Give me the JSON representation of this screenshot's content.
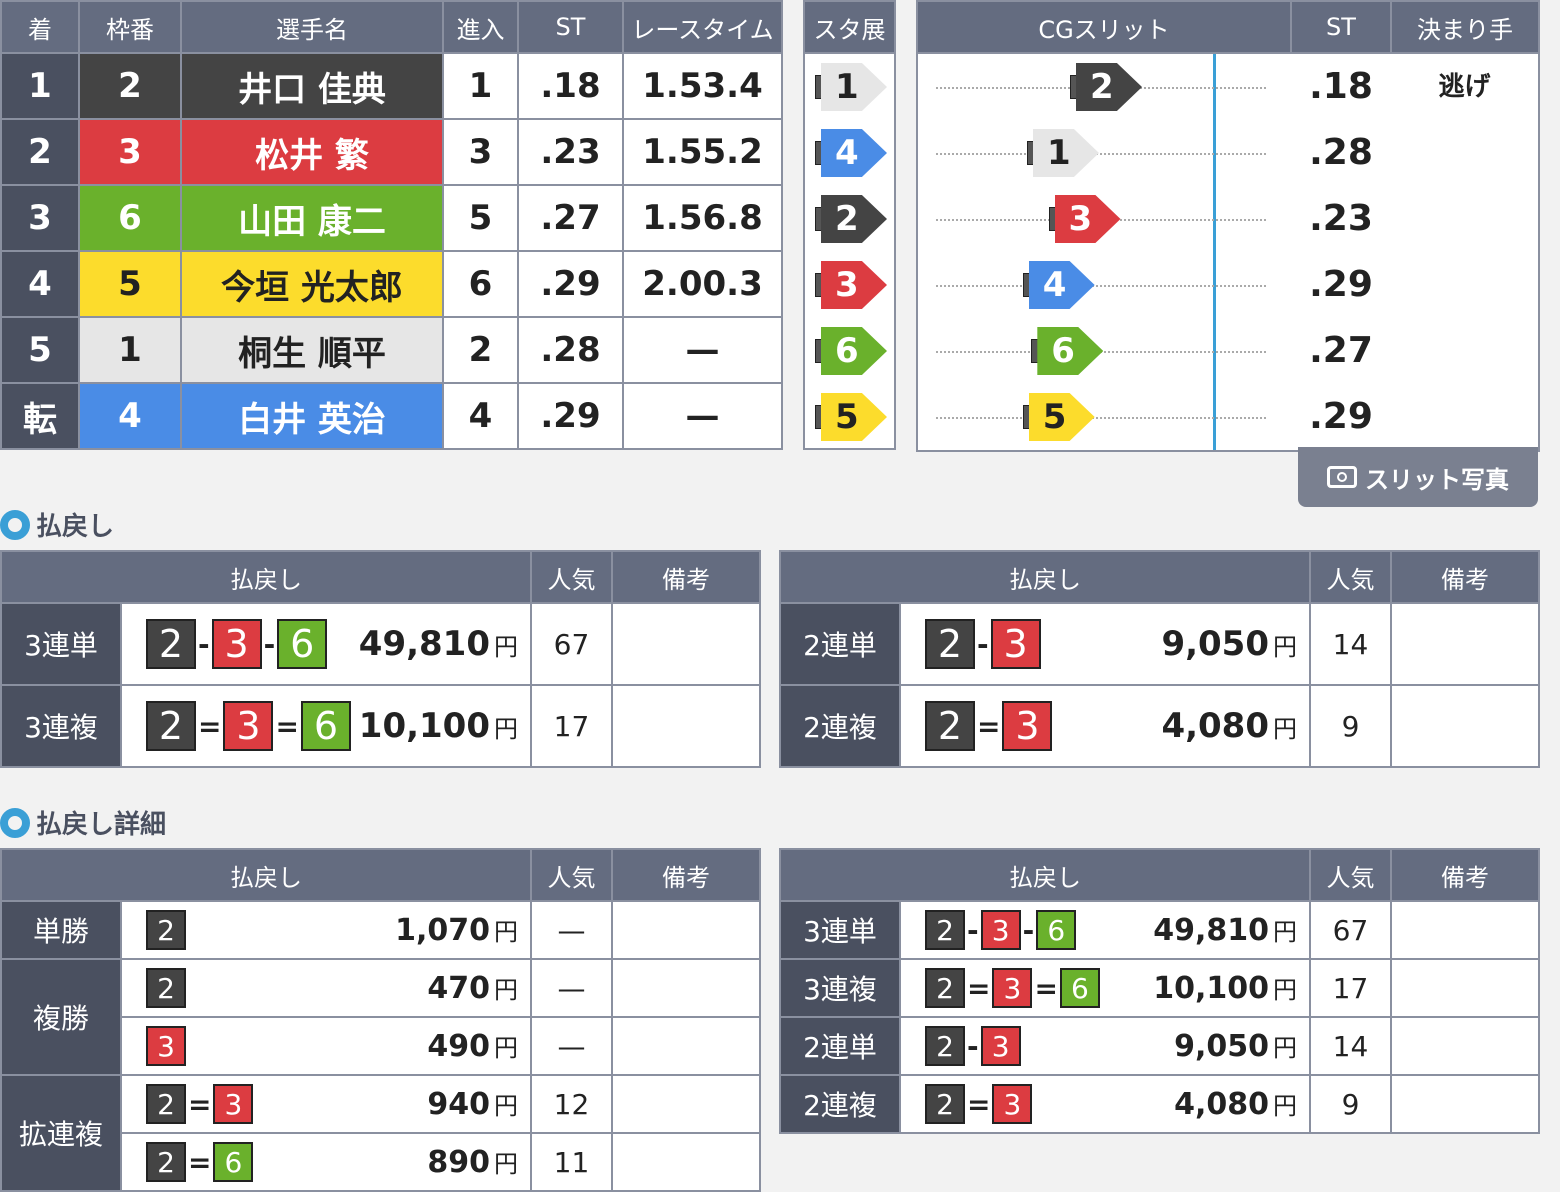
{
  "colors": {
    "header": "#646c80",
    "boat1": "#e6e6e6",
    "boat2": "#444444",
    "boat3": "#dc3c41",
    "boat4": "#4a8ce6",
    "boat5": "#fcdc2c",
    "boat6": "#6ab12c"
  },
  "result": {
    "headers": [
      "着",
      "枠番",
      "選手名",
      "進入",
      "ST",
      "レースタイム"
    ],
    "rows": [
      {
        "rank": "1",
        "waku": "2",
        "name": "井口 佳典",
        "course": "1",
        "st": ".18",
        "time": "1.53.4"
      },
      {
        "rank": "2",
        "waku": "3",
        "name": "松井 繁",
        "course": "3",
        "st": ".23",
        "time": "1.55.2"
      },
      {
        "rank": "3",
        "waku": "6",
        "name": "山田 康二",
        "course": "5",
        "st": ".27",
        "time": "1.56.8"
      },
      {
        "rank": "4",
        "waku": "5",
        "name": "今垣 光太郎",
        "course": "6",
        "st": ".29",
        "time": "2.00.3"
      },
      {
        "rank": "5",
        "waku": "1",
        "name": "桐生 順平",
        "course": "2",
        "st": ".28",
        "time": "—"
      },
      {
        "rank": "転",
        "waku": "4",
        "name": "白井 英治",
        "course": "4",
        "st": ".29",
        "time": "—"
      }
    ]
  },
  "exhibition": {
    "header": "スタ展",
    "boats": [
      "1",
      "4",
      "2",
      "3",
      "6",
      "5"
    ]
  },
  "slit": {
    "header": "CGスリット",
    "st_header": "ST",
    "kimarite_header": "決まり手",
    "rows": [
      {
        "boat": "2",
        "st": ".18",
        "kimarite": "逃げ"
      },
      {
        "boat": "1",
        "st": ".28",
        "kimarite": ""
      },
      {
        "boat": "3",
        "st": ".23",
        "kimarite": ""
      },
      {
        "boat": "4",
        "st": ".29",
        "kimarite": ""
      },
      {
        "boat": "6",
        "st": ".27",
        "kimarite": ""
      },
      {
        "boat": "5",
        "st": ".29",
        "kimarite": ""
      }
    ],
    "photo_button": "スリット写真",
    "photo_icon": "camera-icon"
  },
  "payout": {
    "title": "払戻し",
    "headers": [
      "払戻し",
      "人気",
      "備考"
    ],
    "yen": "円",
    "left": [
      {
        "type": "3連単",
        "combo": [
          "2",
          "3",
          "6"
        ],
        "sep": "-",
        "amount": "49,810",
        "pop": "67",
        "note": ""
      },
      {
        "type": "3連複",
        "combo": [
          "2",
          "3",
          "6"
        ],
        "sep": "=",
        "amount": "10,100",
        "pop": "17",
        "note": ""
      }
    ],
    "right": [
      {
        "type": "2連単",
        "combo": [
          "2",
          "3"
        ],
        "sep": "-",
        "amount": "9,050",
        "pop": "14",
        "note": ""
      },
      {
        "type": "2連複",
        "combo": [
          "2",
          "3"
        ],
        "sep": "=",
        "amount": "4,080",
        "pop": "9",
        "note": ""
      }
    ]
  },
  "detail": {
    "title": "払戻し詳細",
    "headers": [
      "払戻し",
      "人気",
      "備考"
    ],
    "yen": "円",
    "left": [
      {
        "type": "単勝",
        "span": 1,
        "combo": [
          "2"
        ],
        "sep": "",
        "amount": "1,070",
        "pop": "—",
        "note": ""
      },
      {
        "type": "複勝",
        "span": 2,
        "combo": [
          "2"
        ],
        "sep": "",
        "amount": "470",
        "pop": "—",
        "note": ""
      },
      {
        "type": null,
        "combo": [
          "3"
        ],
        "sep": "",
        "amount": "490",
        "pop": "—",
        "note": ""
      },
      {
        "type": "拡連複",
        "span": 2,
        "combo": [
          "2",
          "3"
        ],
        "sep": "=",
        "amount": "940",
        "pop": "12",
        "note": ""
      },
      {
        "type": null,
        "combo": [
          "2",
          "6"
        ],
        "sep": "=",
        "amount": "890",
        "pop": "11",
        "note": ""
      }
    ],
    "right": [
      {
        "type": "3連単",
        "span": 1,
        "combo": [
          "2",
          "3",
          "6"
        ],
        "sep": "-",
        "amount": "49,810",
        "pop": "67",
        "note": ""
      },
      {
        "type": "3連複",
        "span": 1,
        "combo": [
          "2",
          "3",
          "6"
        ],
        "sep": "=",
        "amount": "10,100",
        "pop": "17",
        "note": ""
      },
      {
        "type": "2連単",
        "span": 1,
        "combo": [
          "2",
          "3"
        ],
        "sep": "-",
        "amount": "9,050",
        "pop": "14",
        "note": ""
      },
      {
        "type": "2連複",
        "span": 1,
        "combo": [
          "2",
          "3"
        ],
        "sep": "=",
        "amount": "4,080",
        "pop": "9",
        "note": ""
      }
    ]
  }
}
